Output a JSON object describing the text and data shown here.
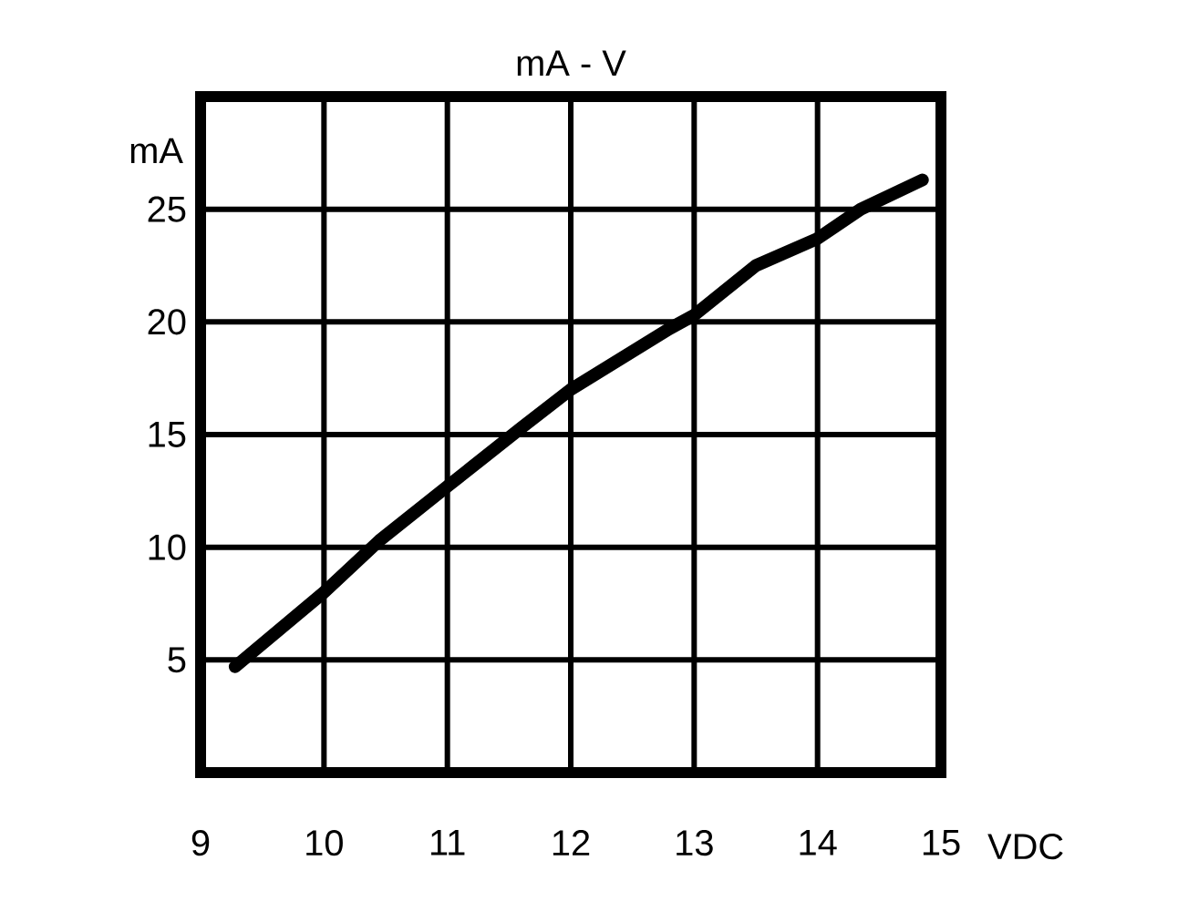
{
  "chart_data": {
    "type": "line",
    "title": "mA - V",
    "xlabel": "VDC",
    "ylabel": "mA",
    "x": [
      9.28,
      10,
      10.45,
      11,
      11.6,
      12,
      12.8,
      13,
      13.5,
      14,
      14.35,
      14.85
    ],
    "series": [
      {
        "color": "#000000",
        "values": [
          4.7,
          8.0,
          10.3,
          12.7,
          15.3,
          17.0,
          19.7,
          20.3,
          22.5,
          23.7,
          25.0,
          26.3
        ]
      }
    ],
    "xlim": [
      9,
      15
    ],
    "ylim": [
      0,
      30
    ],
    "xticks": [
      9,
      10,
      11,
      12,
      13,
      14,
      15
    ],
    "yticks": [
      5,
      10,
      15,
      20,
      25
    ],
    "grid": true
  }
}
